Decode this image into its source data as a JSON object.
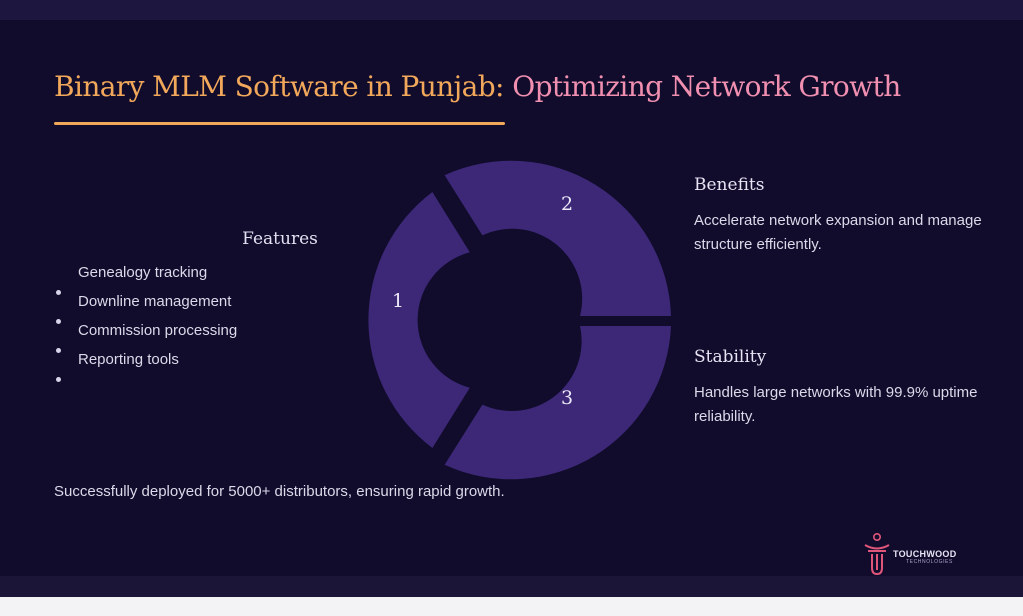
{
  "slide": {
    "title_part1": "Binary MLM Software in Punjab:",
    "title_part2": "Optimizing Network Growth",
    "colors": {
      "background": "#110b2c",
      "accent_orange": "#f2a85a",
      "accent_pink": "#f08fb0",
      "segment": "#3c2876"
    }
  },
  "features": {
    "heading": "Features",
    "items": [
      "Genealogy tracking",
      "Downline management",
      "Commission processing",
      "Reporting tools"
    ]
  },
  "cycle": {
    "segments": [
      {
        "number": "1"
      },
      {
        "number": "2"
      },
      {
        "number": "3"
      }
    ]
  },
  "benefits": {
    "heading": "Benefits",
    "text": "Accelerate network expansion and manage structure efficiently."
  },
  "stability": {
    "heading": "Stability",
    "text": "Handles large networks with 99.9% uptime reliability."
  },
  "footer_note": "Successfully deployed for 5000+ distributors, ensuring rapid growth.",
  "logo": {
    "name": "TOUCHWOOD",
    "subtitle": "TECHNOLOGIES",
    "icon": "touchwood-logo-icon"
  }
}
